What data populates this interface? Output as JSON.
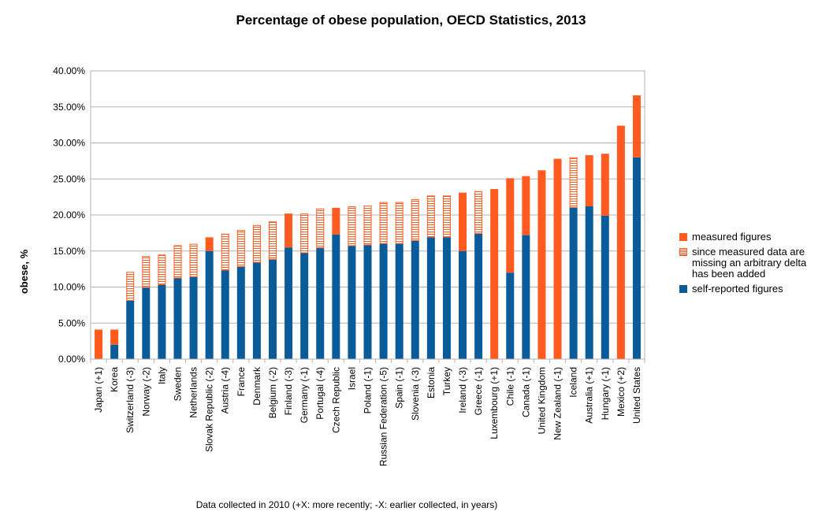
{
  "chart_data": {
    "type": "bar",
    "stacked": true,
    "title": "Percentage of obese population, OECD Statistics, 2013",
    "ylabel": "obese, %",
    "xlabel": "",
    "footnote": "Data collected in 2010 (+X: more recently; -X: earlier collected, in years)",
    "ylim": [
      0,
      0.4
    ],
    "yticks": [
      "0.00%",
      "5.00%",
      "10.00%",
      "15.00%",
      "20.00%",
      "25.00%",
      "30.00%",
      "35.00%",
      "40.00%"
    ],
    "grid": true,
    "legend_position": "right",
    "legend": [
      {
        "key": "measured",
        "label": "measured figures",
        "color": "#ff5a1f",
        "style": "solid"
      },
      {
        "key": "delta",
        "label": "since measured data are missing an arbitrary delta has been added",
        "color": "#ff5a1f",
        "style": "hatched"
      },
      {
        "key": "self",
        "label": "self-reported figures",
        "color": "#0a5b99",
        "style": "solid"
      }
    ],
    "categories": [
      "Japan (+1)",
      "Korea",
      "Switzerland (-3)",
      "Norway (-2)",
      "Italy",
      "Sweden",
      "Netherlands",
      "Slovak Republic (-2)",
      "Austria (-4)",
      "France",
      "Denmark",
      "Belgium (-2)",
      "Finland (-3)",
      "Germany (-1)",
      "Portugal (-4)",
      "Czech Republic",
      "Israel",
      "Poland (-1)",
      "Russian Federation (-5)",
      "Spain (-1)",
      "Slovenia (-3)",
      "Estonia",
      "Turkey",
      "Ireland (-3)",
      "Greece (-1)",
      "Luxembourg (+1)",
      "Chile (-1)",
      "Canada (-1)",
      "United Kingdom",
      "New Zealand (-1)",
      "Iceland",
      "Australia (+1)",
      "Hungary (-1)",
      "Mexico (+2)",
      "United States"
    ],
    "series": [
      {
        "name": "self-reported figures",
        "key": "self",
        "values": [
          0,
          0.02,
          0.081,
          0.099,
          0.103,
          0.112,
          0.114,
          0.15,
          0.123,
          0.128,
          0.134,
          0.138,
          0.155,
          0.147,
          0.154,
          0.173,
          0.157,
          0.158,
          0.16,
          0.16,
          0.164,
          0.169,
          0.169,
          0.15,
          0.174,
          0,
          0.12,
          0.172,
          0,
          0,
          0.21,
          0.212,
          0.199,
          0,
          0.28
        ]
      },
      {
        "name": "measured figures",
        "key": "measured",
        "values": [
          0.041,
          0.021,
          0,
          0,
          0,
          0,
          0,
          0.019,
          0,
          0,
          0,
          0,
          0.047,
          0,
          0,
          0.037,
          0,
          0,
          0,
          0,
          0,
          0,
          0,
          0.081,
          0,
          0.236,
          0.131,
          0.082,
          0.262,
          0.278,
          0,
          0.071,
          0.086,
          0.324,
          0.086
        ]
      },
      {
        "name": "since measured data are missing an arbitrary delta has been added",
        "key": "delta",
        "values": [
          0,
          0,
          0.04,
          0.044,
          0.042,
          0.046,
          0.046,
          0,
          0.051,
          0.051,
          0.052,
          0.053,
          0,
          0.055,
          0.055,
          0,
          0.055,
          0.055,
          0.058,
          0.058,
          0.058,
          0.058,
          0.058,
          0,
          0.059,
          0,
          0,
          0,
          0,
          0,
          0.07,
          0,
          0,
          0,
          0
        ]
      }
    ]
  }
}
